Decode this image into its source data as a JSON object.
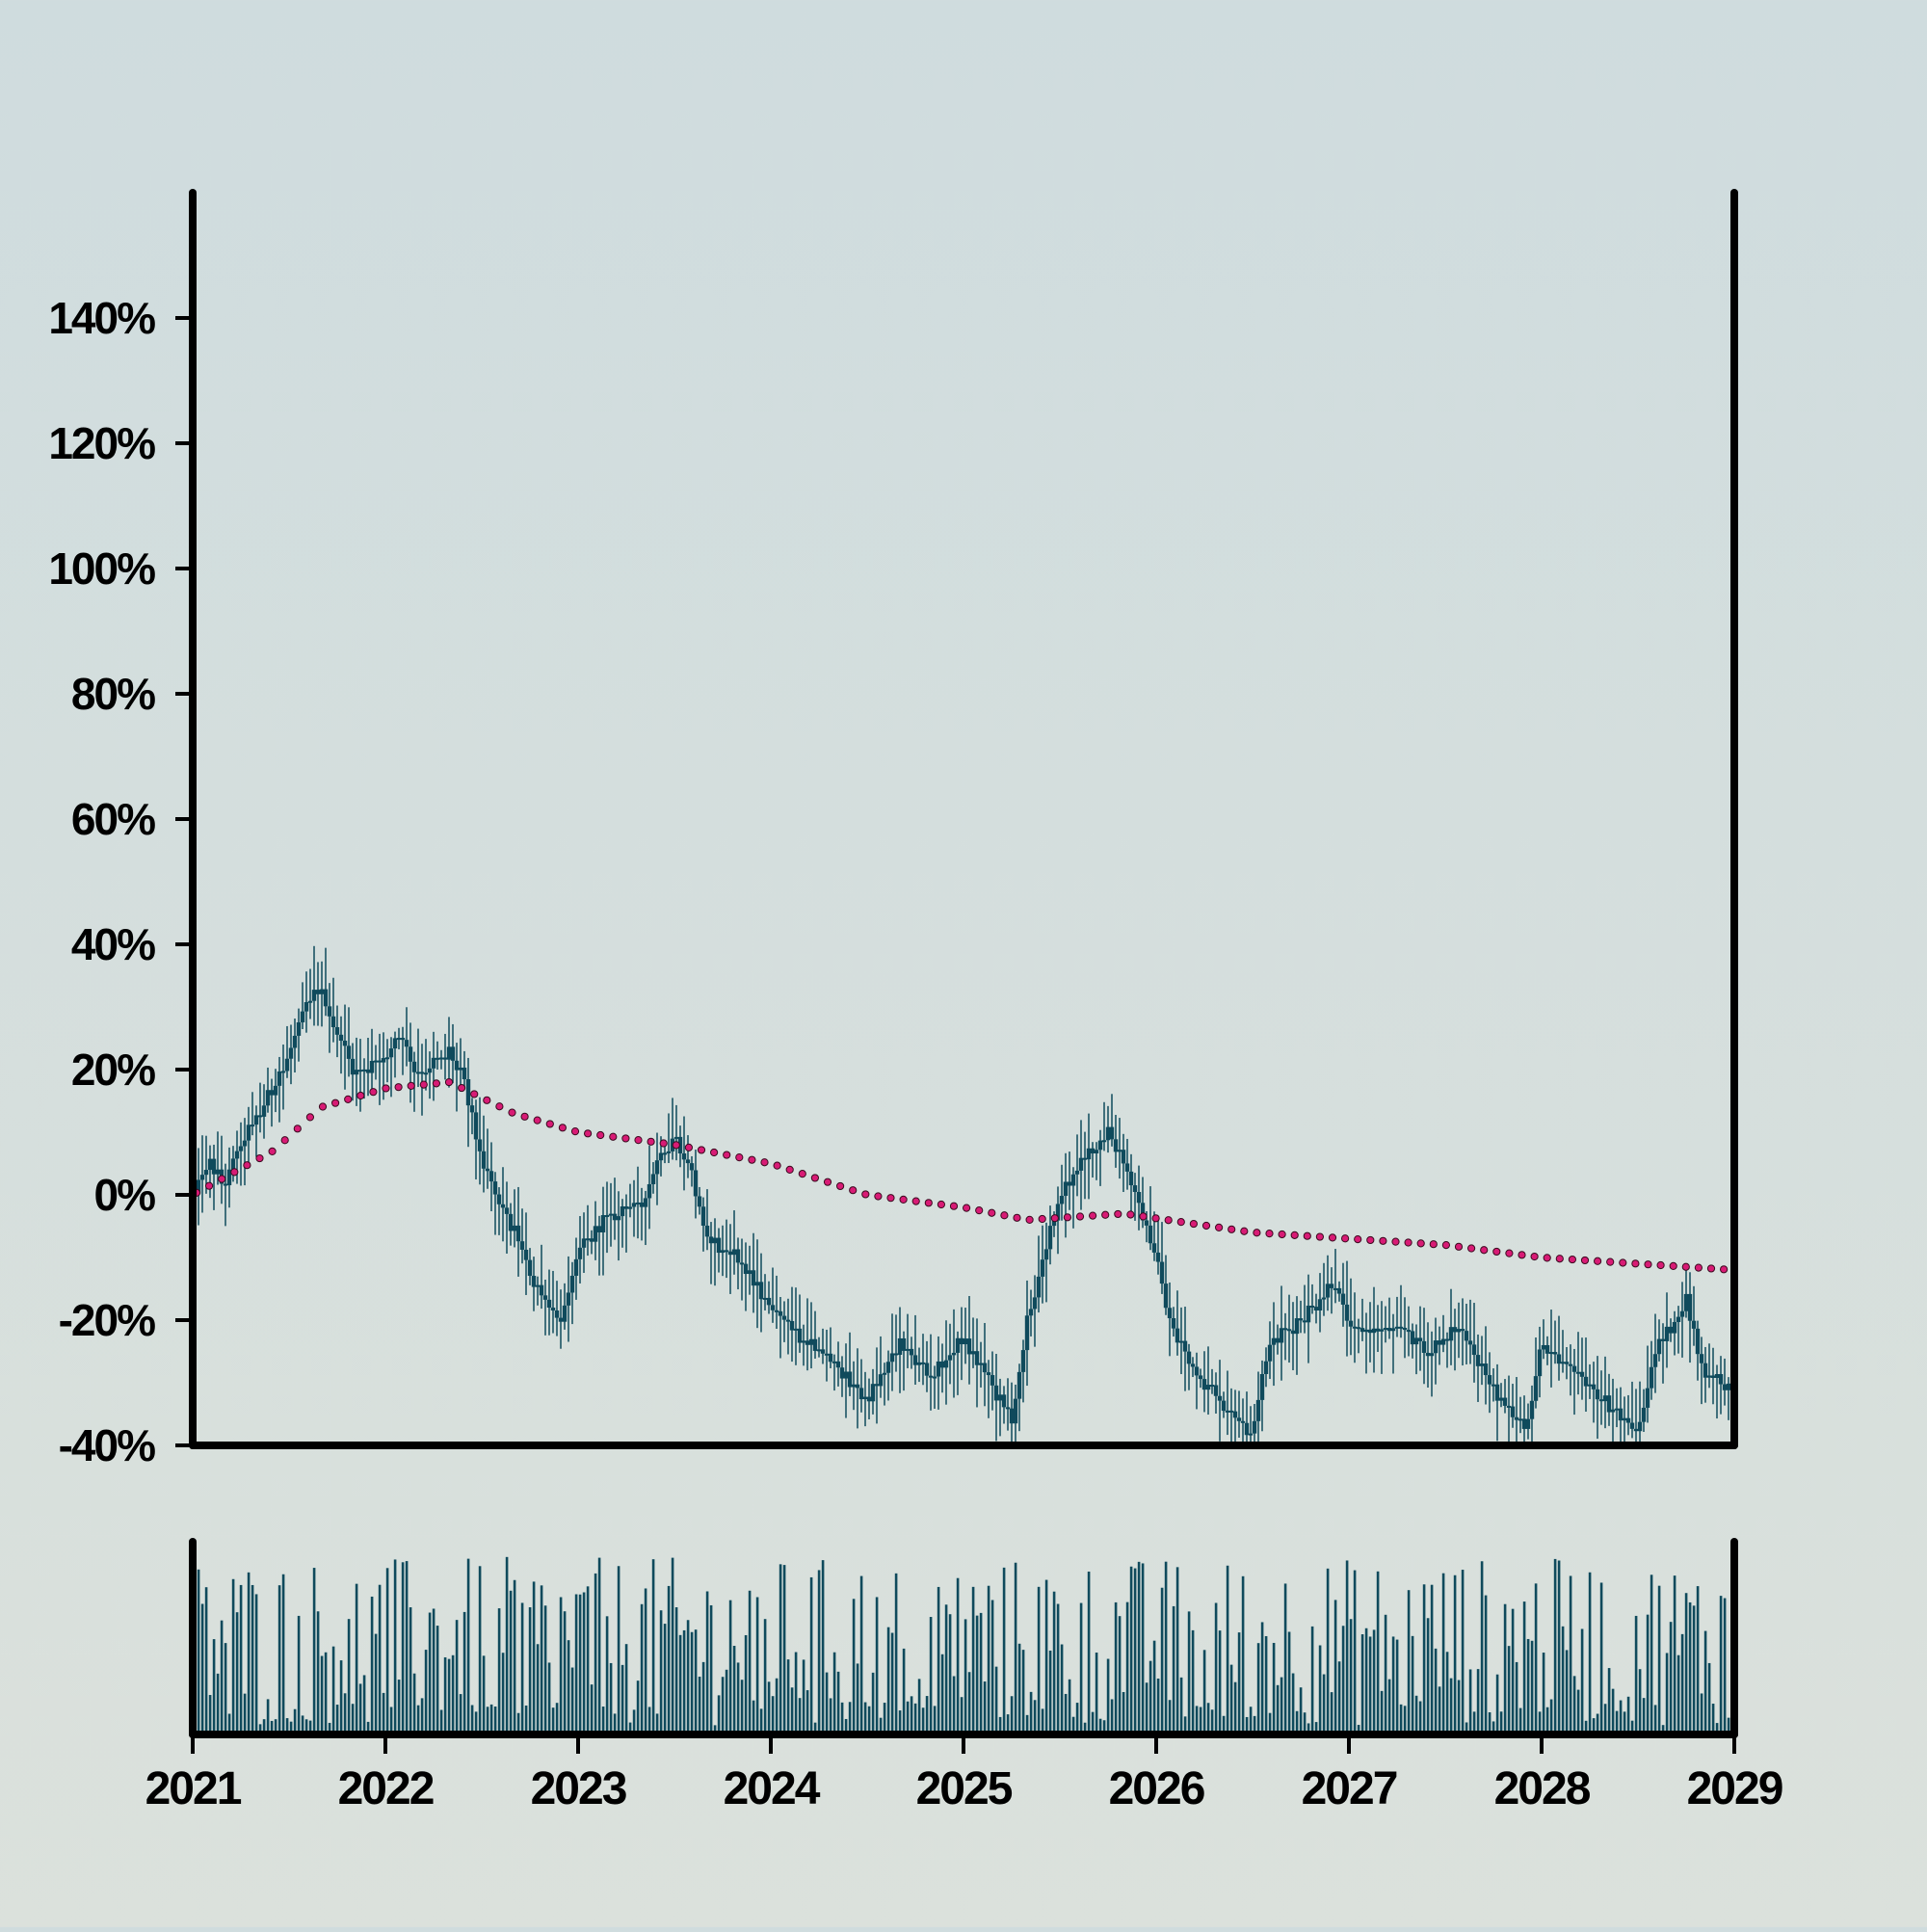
{
  "chart_data": {
    "type": "candlestick",
    "x_axis": {
      "ticks": [
        "2021",
        "2022",
        "2023",
        "2024",
        "2025",
        "2026",
        "2027",
        "2028",
        "2029"
      ],
      "range": [
        2021,
        2029
      ]
    },
    "y_axis": {
      "ticks": [
        "-40%",
        "-20%",
        "0%",
        "20%",
        "40%",
        "60%",
        "80%",
        "100%",
        "120%",
        "140%"
      ],
      "range": [
        -40,
        160
      ],
      "unit": "%"
    },
    "grid": false,
    "legend": "none",
    "series": [
      {
        "kind": "candlestick",
        "note": "weekly candles of cumulative return (%), close values at sampled dates",
        "points": [
          {
            "x": "2021-01",
            "y": 0
          },
          {
            "x": "2021-02",
            "y": 5
          },
          {
            "x": "2021-03",
            "y": 2
          },
          {
            "x": "2021-04",
            "y": 8
          },
          {
            "x": "2021-05",
            "y": 12
          },
          {
            "x": "2021-06",
            "y": 17
          },
          {
            "x": "2021-07",
            "y": 22
          },
          {
            "x": "2021-08",
            "y": 30
          },
          {
            "x": "2021-09",
            "y": 33
          },
          {
            "x": "2021-10",
            "y": 26
          },
          {
            "x": "2021-11",
            "y": 19
          },
          {
            "x": "2022-01",
            "y": 22
          },
          {
            "x": "2022-02",
            "y": 26
          },
          {
            "x": "2022-03",
            "y": 19
          },
          {
            "x": "2022-05",
            "y": 23
          },
          {
            "x": "2022-06",
            "y": 17
          },
          {
            "x": "2022-07",
            "y": 5
          },
          {
            "x": "2022-09",
            "y": -6
          },
          {
            "x": "2022-10",
            "y": -13
          },
          {
            "x": "2022-11",
            "y": -17
          },
          {
            "x": "2022-12",
            "y": -20
          },
          {
            "x": "2023-01",
            "y": -9
          },
          {
            "x": "2023-03",
            "y": -3
          },
          {
            "x": "2023-05",
            "y": -2
          },
          {
            "x": "2023-06",
            "y": 6
          },
          {
            "x": "2023-07",
            "y": 9
          },
          {
            "x": "2023-08",
            "y": 4
          },
          {
            "x": "2023-09",
            "y": -7
          },
          {
            "x": "2023-11",
            "y": -10
          },
          {
            "x": "2024-01",
            "y": -18
          },
          {
            "x": "2024-03",
            "y": -23
          },
          {
            "x": "2024-05",
            "y": -27
          },
          {
            "x": "2024-07",
            "y": -33
          },
          {
            "x": "2024-09",
            "y": -24
          },
          {
            "x": "2024-11",
            "y": -29
          },
          {
            "x": "2025-01",
            "y": -23
          },
          {
            "x": "2025-02",
            "y": -27
          },
          {
            "x": "2025-04",
            "y": -36
          },
          {
            "x": "2025-05",
            "y": -20
          },
          {
            "x": "2025-06",
            "y": -10
          },
          {
            "x": "2025-07",
            "y": 0
          },
          {
            "x": "2025-08",
            "y": 4
          },
          {
            "x": "2025-10",
            "y": 10
          },
          {
            "x": "2025-11",
            "y": 5
          },
          {
            "x": "2026-01",
            "y": -10
          },
          {
            "x": "2026-02",
            "y": -22
          },
          {
            "x": "2026-04",
            "y": -30
          },
          {
            "x": "2026-06",
            "y": -36
          },
          {
            "x": "2026-07",
            "y": -38
          },
          {
            "x": "2026-08",
            "y": -24
          },
          {
            "x": "2026-10",
            "y": -20
          },
          {
            "x": "2026-12",
            "y": -14
          },
          {
            "x": "2027-01",
            "y": -21
          },
          {
            "x": "2027-04",
            "y": -21
          },
          {
            "x": "2027-06",
            "y": -25
          },
          {
            "x": "2027-08",
            "y": -21
          },
          {
            "x": "2027-10",
            "y": -31
          },
          {
            "x": "2027-12",
            "y": -38
          },
          {
            "x": "2028-01",
            "y": -24
          },
          {
            "x": "2028-03",
            "y": -28
          },
          {
            "x": "2028-05",
            "y": -33
          },
          {
            "x": "2028-07",
            "y": -38
          },
          {
            "x": "2028-08",
            "y": -25
          },
          {
            "x": "2028-10",
            "y": -17
          },
          {
            "x": "2028-11",
            "y": -28
          },
          {
            "x": "2029-01",
            "y": -31
          }
        ],
        "color": "#0f4a5c"
      },
      {
        "kind": "dotted-line",
        "note": "smoothed moving average (%)",
        "points": [
          {
            "x": "2021-01",
            "y": 0
          },
          {
            "x": "2021-06",
            "y": 7
          },
          {
            "x": "2021-09",
            "y": 14
          },
          {
            "x": "2022-01",
            "y": 17
          },
          {
            "x": "2022-05",
            "y": 18
          },
          {
            "x": "2022-09",
            "y": 13
          },
          {
            "x": "2023-01",
            "y": 10
          },
          {
            "x": "2023-07",
            "y": 8
          },
          {
            "x": "2024-01",
            "y": 5
          },
          {
            "x": "2024-07",
            "y": 0
          },
          {
            "x": "2025-01",
            "y": -2
          },
          {
            "x": "2025-05",
            "y": -4
          },
          {
            "x": "2025-11",
            "y": -3
          },
          {
            "x": "2026-07",
            "y": -6
          },
          {
            "x": "2027-01",
            "y": -7
          },
          {
            "x": "2027-07",
            "y": -8
          },
          {
            "x": "2028-01",
            "y": -10
          },
          {
            "x": "2028-07",
            "y": -11
          },
          {
            "x": "2029-01",
            "y": -12
          }
        ],
        "color": "#d81b75"
      },
      {
        "kind": "volume-bars",
        "note": "relative volume (0-1), weekly",
        "color": "#0f4a5c",
        "seed": 7,
        "count": 400
      }
    ]
  }
}
